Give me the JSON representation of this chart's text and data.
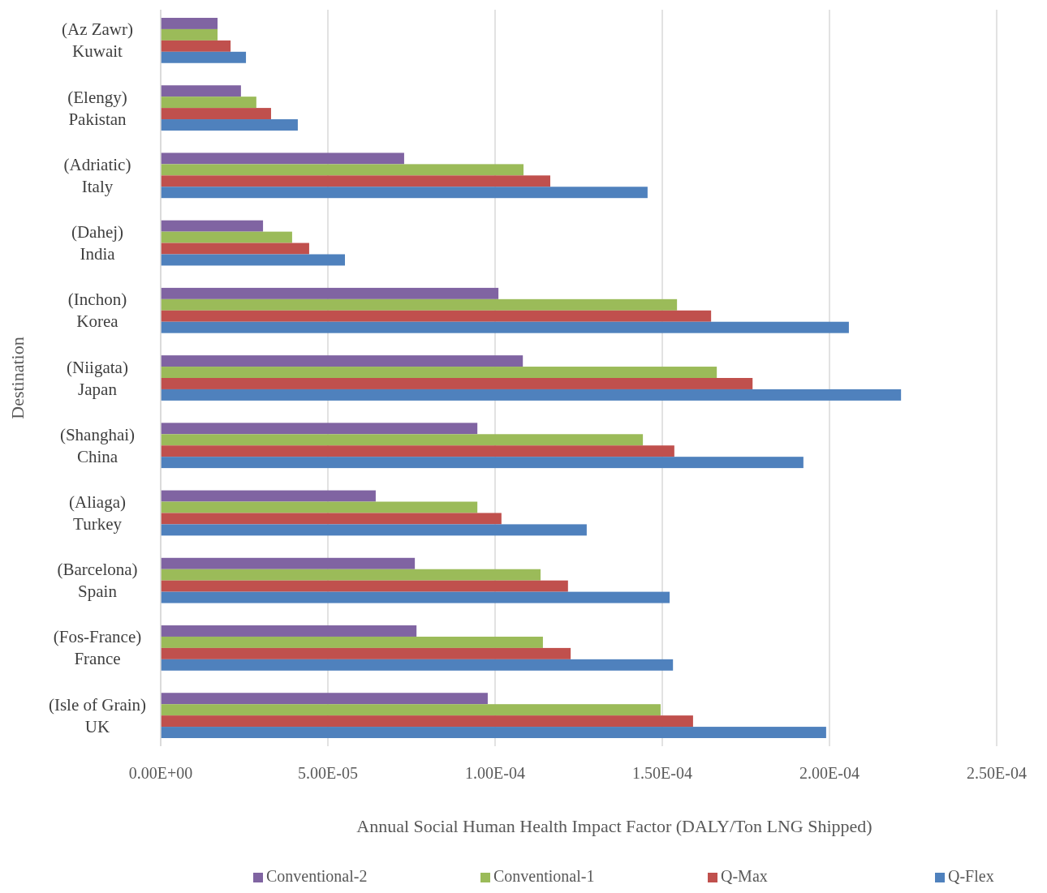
{
  "chart_data": {
    "type": "bar",
    "orientation": "horizontal",
    "xlabel": "Annual Social Human Health Impact Factor (DALY/Ton LNG Shipped)",
    "ylabel": "Destination",
    "categories": [
      "(Az Zawr)\nKuwait",
      "(Elengy)\nPakistan",
      "(Adriatic)\nItaly",
      "(Dahej)\nIndia",
      "(Inchon)\nKorea",
      "(Niigata)\nJapan",
      "(Shanghai)\nChina",
      "(Aliaga)\nTurkey",
      "(Barcelona)\nSpain",
      "(Fos-France)\nFrance",
      "(Isle of Grain)\nUK"
    ],
    "series": [
      {
        "name": "Conventional-2",
        "color": "#8064a2",
        "values": [
          1.7e-05,
          2.4e-05,
          7.28e-05,
          3.06e-05,
          0.000101,
          0.0001083,
          9.47e-05,
          6.43e-05,
          7.6e-05,
          7.65e-05,
          9.78e-05
        ]
      },
      {
        "name": "Conventional-1",
        "color": "#9bbb59",
        "values": [
          1.7e-05,
          2.86e-05,
          0.0001085,
          3.93e-05,
          0.0001544,
          0.0001663,
          0.0001442,
          9.47e-05,
          0.0001136,
          0.0001143,
          0.0001495
        ]
      },
      {
        "name": "Q-Max",
        "color": "#c0504d",
        "values": [
          2.09e-05,
          3.3e-05,
          0.0001165,
          4.44e-05,
          0.0001646,
          0.000177,
          0.0001536,
          0.0001019,
          0.0001218,
          0.0001226,
          0.0001592
        ]
      },
      {
        "name": "Q-Flex",
        "color": "#4f81bd",
        "values": [
          2.55e-05,
          4.1e-05,
          0.0001456,
          5.51e-05,
          0.0002058,
          0.0002214,
          0.0001922,
          0.0001274,
          0.0001522,
          0.0001532,
          0.000199
        ]
      }
    ],
    "xlim": [
      0,
      0.00025
    ],
    "xticks": [
      {
        "value": 0,
        "label": "0.00E+00"
      },
      {
        "value": 5e-05,
        "label": "5.00E-05"
      },
      {
        "value": 0.0001,
        "label": "1.00E-04"
      },
      {
        "value": 0.00015,
        "label": "1.50E-04"
      },
      {
        "value": 0.0002,
        "label": "2.00E-04"
      },
      {
        "value": 0.00025,
        "label": "2.50E-04"
      }
    ],
    "grid": "x",
    "legend": "bottom"
  }
}
